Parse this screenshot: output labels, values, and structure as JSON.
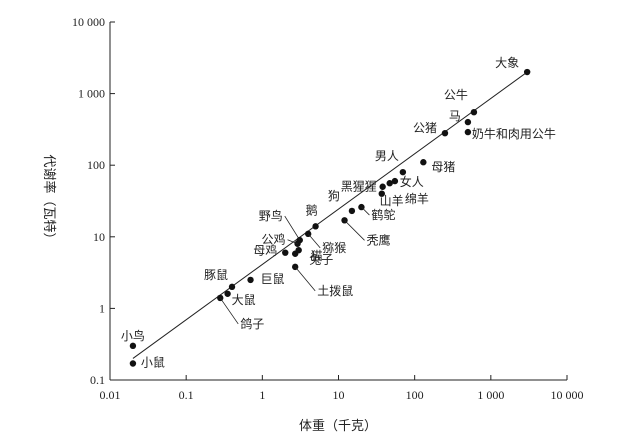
{
  "chart_data": {
    "type": "scatter",
    "title": "",
    "xlabel": "体重（千克）",
    "ylabel": "代谢率（瓦特）",
    "x_scale": "log",
    "y_scale": "log",
    "xlim": [
      0.01,
      10000
    ],
    "ylim": [
      0.1,
      10000
    ],
    "x_ticks": [
      0.01,
      0.1,
      1,
      10,
      100,
      1000,
      10000
    ],
    "x_tick_labels": [
      "0.01",
      "0.1",
      "1",
      "10",
      "100",
      "1 000",
      "10 000"
    ],
    "y_ticks": [
      0.1,
      1,
      10,
      100,
      1000,
      10000
    ],
    "y_tick_labels": [
      "0.1",
      "1",
      "10",
      "100",
      "1 000",
      "10 000"
    ],
    "grid": false,
    "legend": "none",
    "fit_line": {
      "x": [
        0.02,
        3000
      ],
      "y": [
        0.2,
        2000
      ]
    },
    "points": [
      {
        "label": "小鸟",
        "x": 0.02,
        "y": 0.3
      },
      {
        "label": "小鼠",
        "x": 0.02,
        "y": 0.17
      },
      {
        "label": "鸽子",
        "x": 0.28,
        "y": 1.4
      },
      {
        "label": "大鼠",
        "x": 0.35,
        "y": 1.6
      },
      {
        "label": "豚鼠",
        "x": 0.4,
        "y": 2.0
      },
      {
        "label": "巨鼠",
        "x": 0.7,
        "y": 2.5
      },
      {
        "label": "母鸡",
        "x": 2.0,
        "y": 6.0
      },
      {
        "label": "土拨鼠",
        "x": 2.7,
        "y": 3.8
      },
      {
        "label": "兔子",
        "x": 2.7,
        "y": 5.8
      },
      {
        "label": "公鸡",
        "x": 2.9,
        "y": 8.0
      },
      {
        "label": "猫",
        "x": 3.0,
        "y": 6.5
      },
      {
        "label": "野鸟",
        "x": 3.1,
        "y": 9.0
      },
      {
        "label": "猕猴",
        "x": 4.0,
        "y": 11.0
      },
      {
        "label": "鹅",
        "x": 5.0,
        "y": 14.0
      },
      {
        "label": "秃鹰",
        "x": 12.0,
        "y": 17.0
      },
      {
        "label": "狗",
        "x": 15.0,
        "y": 23.0
      },
      {
        "label": "鹤鸵",
        "x": 20.0,
        "y": 26.0
      },
      {
        "label": "黑猩猩",
        "x": 37.0,
        "y": 40.0
      },
      {
        "label": "山羊",
        "x": 38.0,
        "y": 50.0
      },
      {
        "label": "女人",
        "x": 47.0,
        "y": 56.0
      },
      {
        "label": "绵羊",
        "x": 55.0,
        "y": 60.0
      },
      {
        "label": "男人",
        "x": 70.0,
        "y": 80.0
      },
      {
        "label": "母猪",
        "x": 130.0,
        "y": 110.0
      },
      {
        "label": "公猪",
        "x": 250.0,
        "y": 280.0
      },
      {
        "label": "奶牛和肉用公牛",
        "x": 500.0,
        "y": 290.0
      },
      {
        "label": "马",
        "x": 500.0,
        "y": 400.0
      },
      {
        "label": "公牛",
        "x": 600.0,
        "y": 550.0
      },
      {
        "label": "大象",
        "x": 3000.0,
        "y": 2000.0
      }
    ]
  }
}
